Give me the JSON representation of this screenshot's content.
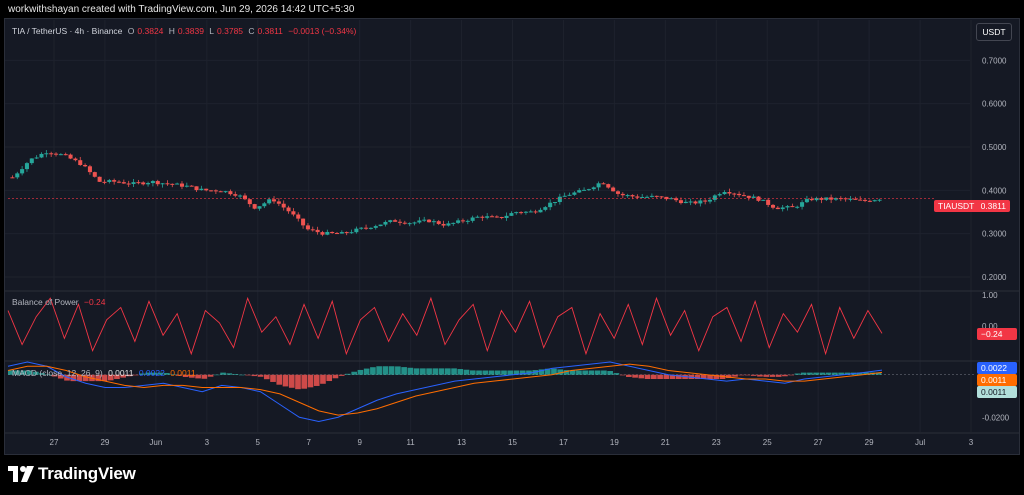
{
  "caption": "workwithshayan created with TradingView.com, Jun 29, 2026 14:42 UTC+5:30",
  "footer": {
    "brand": "TradingView"
  },
  "header": {
    "symbol_title": "TIA / TetherUS · 4h · Binance",
    "o_label": "O",
    "o_value": "0.3824",
    "h_label": "H",
    "h_value": "0.3839",
    "l_label": "L",
    "l_value": "0.3785",
    "c_label": "C",
    "c_value": "0.3811",
    "change": "−0.0013 (−0.34%)",
    "currency": "USDT"
  },
  "badges": {
    "price_symbol": "TIAUSDT",
    "price_value": "0.3811",
    "bop_value": "−0.24",
    "macd_1": "0.0022",
    "macd_2": "0.0011",
    "macd_3": "0.0011"
  },
  "bop_legend": {
    "name": "Balance of Power",
    "value": "−0.24"
  },
  "macd_legend": {
    "name": "MACD (close, 12, 26, 9)",
    "v1": "0.0011",
    "v2": "0.0022",
    "v3": "0.0011"
  },
  "colors": {
    "up": "#26a69a",
    "down": "#ef5350",
    "macd_line": "#2962ff",
    "signal_line": "#ff6d00",
    "bop": "#f23645"
  },
  "chart_data": [
    {
      "type": "line",
      "title": "TIA / TetherUS · 4h · Binance",
      "y_ticks": [
        "0.7000",
        "0.6000",
        "0.5000",
        "0.4000",
        "0.3000",
        "0.2000"
      ],
      "ylim": [
        0.17,
        0.77
      ],
      "x_ticks": [
        "27",
        "29",
        "Jun",
        "3",
        "5",
        "7",
        "9",
        "11",
        "13",
        "15",
        "17",
        "19",
        "21",
        "23",
        "25",
        "27",
        "29",
        "Jul",
        "3"
      ],
      "series": [
        {
          "values": [
            0.43,
            0.47,
            0.49,
            0.48,
            0.46,
            0.42,
            0.42,
            0.415,
            0.42,
            0.415,
            0.41,
            0.4,
            0.4,
            0.39,
            0.36,
            0.38,
            0.35,
            0.31,
            0.3,
            0.3,
            0.31,
            0.32,
            0.33,
            0.325,
            0.33,
            0.32,
            0.33,
            0.34,
            0.335,
            0.35,
            0.35,
            0.37,
            0.39,
            0.4,
            0.42,
            0.39,
            0.385,
            0.385,
            0.38,
            0.37,
            0.375,
            0.4,
            0.39,
            0.38,
            0.36,
            0.36,
            0.38,
            0.38,
            0.38,
            0.375,
            0.381
          ]
        }
      ]
    },
    {
      "type": "line",
      "title": "Balance of Power",
      "y_ticks": [
        "1.00",
        "0.00"
      ],
      "ylim": [
        -1.1,
        1.1
      ],
      "series": [
        {
          "values": [
            0.5,
            -0.6,
            0.3,
            0.9,
            -0.4,
            0.7,
            -0.8,
            0.2,
            0.6,
            -0.5,
            0.8,
            -0.3,
            0.4,
            -0.9,
            0.5,
            0.1,
            -0.7,
            0.9,
            -0.2,
            0.3,
            -0.6,
            0.7,
            -0.4,
            0.8,
            -0.9,
            0.2,
            0.6,
            -0.5,
            0.4,
            -0.3,
            0.9,
            -0.6,
            0.2,
            0.7,
            -0.8,
            0.5,
            -0.2,
            0.8,
            -0.7,
            0.3,
            0.6,
            -0.9,
            0.4,
            -0.4,
            0.7,
            -0.6,
            0.9,
            -0.3,
            0.5,
            -0.8,
            0.3,
            0.6,
            -0.5,
            0.8,
            -0.7,
            0.4,
            -0.2,
            0.7,
            -0.9,
            0.6,
            -0.4,
            0.5,
            -0.24
          ]
        }
      ]
    },
    {
      "type": "line",
      "title": "MACD (close, 12, 26, 9)",
      "y_ticks": [
        "-0.0200"
      ],
      "ylim": [
        -0.026,
        0.006
      ],
      "series": [
        {
          "values": [
            0.004,
            0.006,
            0.004,
            -0.001,
            -0.004,
            -0.006,
            -0.006,
            -0.005,
            -0.004,
            -0.006,
            -0.008,
            -0.005,
            -0.006,
            -0.008,
            -0.014,
            -0.02,
            -0.022,
            -0.02,
            -0.016,
            -0.012,
            -0.009,
            -0.007,
            -0.005,
            -0.003,
            -0.002,
            -0.001,
            0.0,
            0.001,
            0.003,
            0.004,
            0.005,
            0.006,
            0.004,
            0.002,
            0.0,
            -0.001,
            -0.002,
            -0.003,
            -0.002,
            -0.003,
            -0.004,
            -0.002,
            -0.001,
            0.0,
            0.001,
            0.0022
          ]
        },
        {
          "values": [
            0.002,
            0.004,
            0.004,
            0.002,
            -0.001,
            -0.003,
            -0.005,
            -0.006,
            -0.005,
            -0.005,
            -0.006,
            -0.006,
            -0.006,
            -0.007,
            -0.009,
            -0.013,
            -0.017,
            -0.019,
            -0.018,
            -0.016,
            -0.013,
            -0.01,
            -0.008,
            -0.006,
            -0.004,
            -0.003,
            -0.002,
            -0.001,
            0.0,
            0.002,
            0.003,
            0.004,
            0.005,
            0.004,
            0.002,
            0.001,
            0.0,
            -0.001,
            -0.002,
            -0.002,
            -0.003,
            -0.003,
            -0.002,
            -0.001,
            0.0,
            0.0011
          ]
        }
      ]
    }
  ]
}
